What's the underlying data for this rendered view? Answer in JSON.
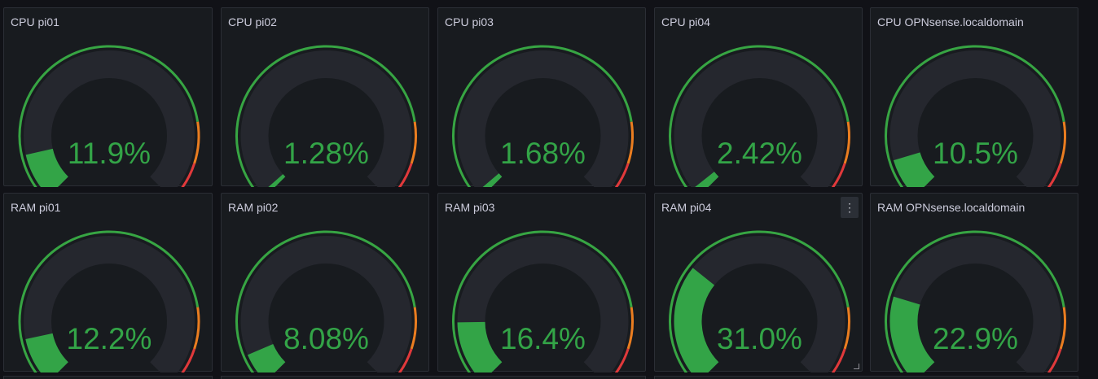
{
  "gauge": {
    "min": 0,
    "max": 100,
    "thresholds": [
      {
        "value": 0,
        "color": "#37a543"
      },
      {
        "value": 80,
        "color": "#ea7d20"
      },
      {
        "value": 90,
        "color": "#e0393b"
      }
    ],
    "value_color": "#33a447",
    "track_color": "#25272e"
  },
  "panels": [
    {
      "title": "CPU pi01",
      "value": 11.9,
      "display": "11.9%"
    },
    {
      "title": "CPU pi02",
      "value": 1.28,
      "display": "1.28%"
    },
    {
      "title": "CPU pi03",
      "value": 1.68,
      "display": "1.68%"
    },
    {
      "title": "CPU pi04",
      "value": 2.42,
      "display": "2.42%"
    },
    {
      "title": "CPU OPNsense.localdomain",
      "value": 10.5,
      "display": "10.5%"
    },
    {
      "title": "RAM pi01",
      "value": 12.2,
      "display": "12.2%"
    },
    {
      "title": "RAM pi02",
      "value": 8.08,
      "display": "8.08%"
    },
    {
      "title": "RAM pi03",
      "value": 16.4,
      "display": "16.4%"
    },
    {
      "title": "RAM pi04",
      "value": 31.0,
      "display": "31.0%",
      "menu_icon": "more-vertical-icon",
      "resize_icon": "resize-handle-icon"
    },
    {
      "title": "RAM OPNsense.localdomain",
      "value": 22.9,
      "display": "22.9%"
    }
  ]
}
